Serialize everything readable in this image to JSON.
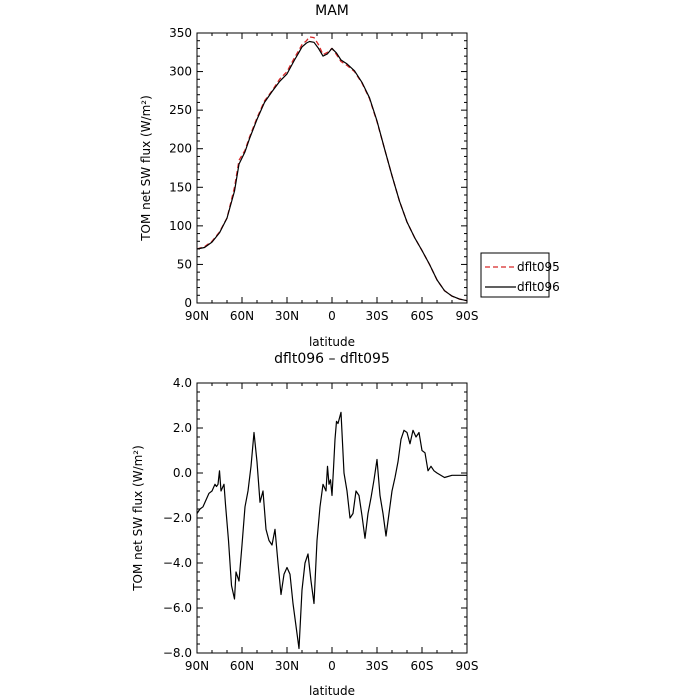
{
  "chart_data": [
    {
      "type": "line",
      "title": "MAM",
      "xlabel": "latitude",
      "ylabel": "TOM net SW flux (W/m²)",
      "xlim": [
        90,
        -90
      ],
      "ylim": [
        0,
        350
      ],
      "x_ticks": [
        {
          "value": 90,
          "label": "90N"
        },
        {
          "value": 60,
          "label": "60N"
        },
        {
          "value": 30,
          "label": "30N"
        },
        {
          "value": 0,
          "label": "0"
        },
        {
          "value": -30,
          "label": "30S"
        },
        {
          "value": -60,
          "label": "60S"
        },
        {
          "value": -90,
          "label": "90S"
        }
      ],
      "y_ticks": [
        {
          "value": 0,
          "label": "0"
        },
        {
          "value": 50,
          "label": "50"
        },
        {
          "value": 100,
          "label": "100"
        },
        {
          "value": 150,
          "label": "150"
        },
        {
          "value": 200,
          "label": "200"
        },
        {
          "value": 250,
          "label": "250"
        },
        {
          "value": 300,
          "label": "300"
        },
        {
          "value": 350,
          "label": "350"
        }
      ],
      "legend": {
        "placement": "right",
        "entries": [
          "dflt095",
          "dflt096"
        ]
      },
      "series": [
        {
          "name": "dflt095",
          "color": "#d62728",
          "dash": "dashed",
          "x": [
            90,
            85,
            80,
            75,
            70,
            65,
            62,
            58,
            55,
            50,
            45,
            40,
            35,
            30,
            25,
            22,
            20,
            17,
            15,
            12,
            9,
            6,
            3,
            0,
            -3,
            -6,
            -10,
            -15,
            -20,
            -25,
            -30,
            -35,
            -40,
            -45,
            -50,
            -55,
            -60,
            -65,
            -70,
            -75,
            -80,
            -85,
            -90
          ],
          "y": [
            70,
            73,
            80,
            92,
            110,
            150,
            185,
            198,
            215,
            240,
            262,
            275,
            290,
            300,
            318,
            328,
            335,
            340,
            345,
            344,
            335,
            322,
            325,
            330,
            322,
            313,
            308,
            300,
            285,
            265,
            235,
            200,
            165,
            132,
            105,
            85,
            68,
            50,
            30,
            16,
            9,
            5,
            3
          ]
        },
        {
          "name": "dflt096",
          "color": "#000000",
          "dash": "solid",
          "x": [
            90,
            85,
            80,
            75,
            70,
            65,
            62,
            58,
            55,
            50,
            45,
            40,
            35,
            30,
            25,
            22,
            20,
            17,
            15,
            12,
            9,
            6,
            3,
            0,
            -3,
            -6,
            -10,
            -15,
            -20,
            -25,
            -30,
            -35,
            -40,
            -45,
            -50,
            -55,
            -60,
            -65,
            -70,
            -75,
            -80,
            -85,
            -90
          ],
          "y": [
            70,
            72,
            79,
            91,
            110,
            145,
            180,
            196,
            213,
            238,
            260,
            274,
            287,
            297,
            315,
            325,
            332,
            337,
            339,
            338,
            330,
            320,
            323,
            330,
            324,
            315,
            310,
            301,
            286,
            266,
            236,
            200,
            165,
            132,
            105,
            85,
            68,
            50,
            30,
            16,
            9,
            5,
            3
          ]
        }
      ]
    },
    {
      "type": "line",
      "title": "dflt096 – dflt095",
      "xlabel": "latitude",
      "ylabel": "TOM net SW flux (W/m²)",
      "xlim": [
        90,
        -90
      ],
      "ylim": [
        -8,
        4
      ],
      "x_ticks": [
        {
          "value": 90,
          "label": "90N"
        },
        {
          "value": 60,
          "label": "60N"
        },
        {
          "value": 30,
          "label": "30N"
        },
        {
          "value": 0,
          "label": "0"
        },
        {
          "value": -30,
          "label": "30S"
        },
        {
          "value": -60,
          "label": "60S"
        },
        {
          "value": -90,
          "label": "90S"
        }
      ],
      "y_ticks": [
        {
          "value": -8,
          "label": "−8.0"
        },
        {
          "value": -6,
          "label": "−6.0"
        },
        {
          "value": -4,
          "label": "−4.0"
        },
        {
          "value": -2,
          "label": "−2.0"
        },
        {
          "value": 0,
          "label": "0.0"
        },
        {
          "value": 2,
          "label": "2.0"
        },
        {
          "value": 4,
          "label": "4.0"
        }
      ],
      "series": [
        {
          "color": "#000000",
          "dash": "solid",
          "x": [
            90,
            88,
            86,
            84,
            82,
            80,
            78,
            77,
            76,
            75,
            74,
            72,
            71,
            69,
            67,
            65,
            64,
            62,
            60,
            58,
            56,
            54,
            52,
            50,
            48,
            46,
            44,
            42,
            40,
            38,
            36,
            34,
            32,
            30,
            28,
            26,
            24,
            22,
            21,
            20,
            18,
            16,
            14,
            12,
            10,
            8,
            6,
            4,
            3,
            2,
            1,
            0,
            -1,
            -2,
            -3,
            -4,
            -6,
            -8,
            -10,
            -12,
            -14,
            -16,
            -18,
            -20,
            -22,
            -24,
            -26,
            -28,
            -30,
            -32,
            -34,
            -36,
            -38,
            -40,
            -42,
            -44,
            -46,
            -48,
            -50,
            -52,
            -54,
            -56,
            -58,
            -60,
            -62,
            -64,
            -66,
            -68,
            -70,
            -75,
            -80,
            -85,
            -90
          ],
          "y": [
            -1.8,
            -1.6,
            -1.5,
            -1.2,
            -0.9,
            -0.8,
            -0.5,
            -0.6,
            -0.5,
            0.1,
            -0.8,
            -0.5,
            -1.4,
            -3.0,
            -5.0,
            -5.6,
            -4.4,
            -4.8,
            -3.2,
            -1.5,
            -0.8,
            0.3,
            1.8,
            0.5,
            -1.3,
            -0.8,
            -2.5,
            -3.0,
            -3.2,
            -2.5,
            -4.0,
            -5.4,
            -4.5,
            -4.2,
            -4.5,
            -5.8,
            -6.8,
            -7.8,
            -6.5,
            -5.2,
            -4.0,
            -3.6,
            -4.8,
            -5.8,
            -3.0,
            -1.5,
            -0.5,
            -0.8,
            0.3,
            -0.5,
            -0.3,
            -1.0,
            0.2,
            1.5,
            2.3,
            2.2,
            2.7,
            0.0,
            -0.8,
            -2.0,
            -1.8,
            -0.8,
            -1.0,
            -1.9,
            -2.9,
            -1.8,
            -1.1,
            -0.3,
            0.6,
            -1.0,
            -1.8,
            -2.8,
            -1.8,
            -0.8,
            -0.2,
            0.5,
            1.5,
            1.9,
            1.8,
            1.3,
            1.9,
            1.6,
            1.8,
            1.0,
            0.9,
            0.1,
            0.3,
            0.1,
            0.0,
            -0.2,
            -0.1,
            -0.1,
            -0.1
          ]
        }
      ]
    }
  ]
}
